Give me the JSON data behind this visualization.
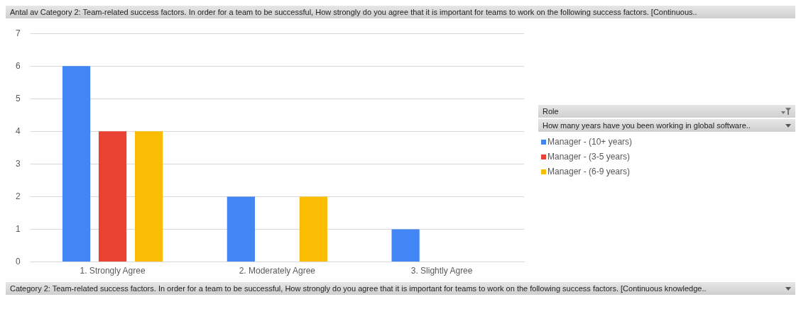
{
  "chart_data": {
    "type": "bar",
    "title": "Antal av Category 2: Team-related success factors. In order for a team to be successful, How strongly do you agree that it is important for teams to work on the following success factors. [Continuous..",
    "xlabel": "Category 2: Team-related success factors. In order for a team to be successful, How strongly do you agree that it is important for teams to work on the following success factors. [Continuous knowledge..",
    "legend_title": "Role",
    "annotations": [
      "How many years have you been working in global software.."
    ],
    "categories": [
      "1. Strongly Agree",
      "2. Moderately Agree",
      "3. Slightly Agree"
    ],
    "series": [
      {
        "name": "Manager - (10+ years)",
        "color": "#4285f4",
        "values": [
          6,
          2,
          1
        ]
      },
      {
        "name": "Manager - (3-5 years)",
        "color": "#ea4335",
        "values": [
          4,
          null,
          null
        ]
      },
      {
        "name": "Manager - (6-9 years)",
        "color": "#fbbc04",
        "values": [
          4,
          2,
          null
        ]
      }
    ],
    "ylim": [
      0,
      7
    ],
    "yticks": [
      0,
      1,
      2,
      3,
      4,
      5,
      6,
      7
    ],
    "grid": "y",
    "legend": "right"
  }
}
